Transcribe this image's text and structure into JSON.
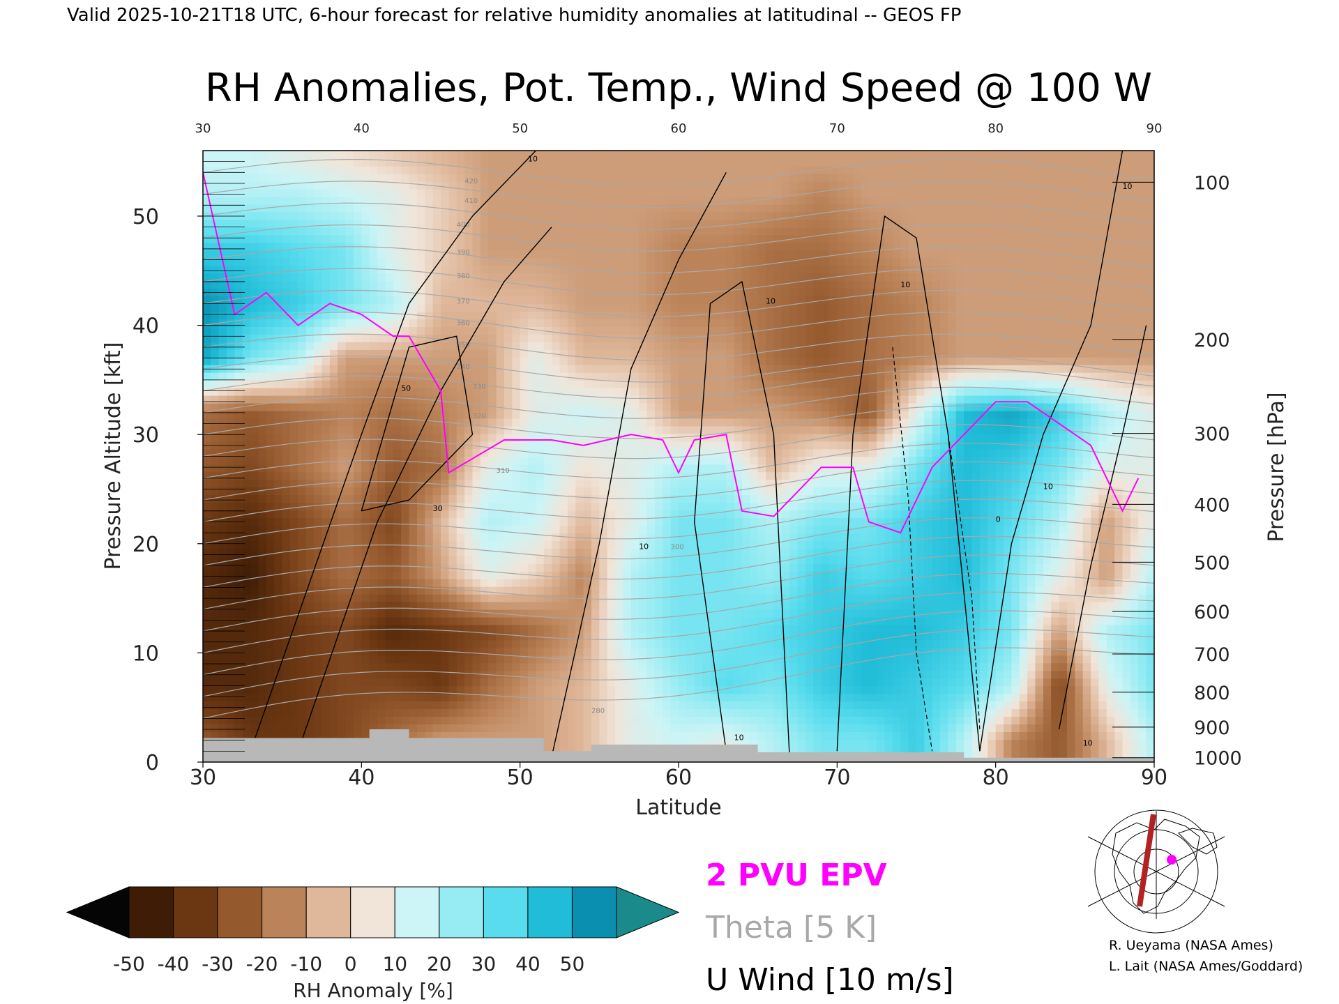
{
  "header": {
    "valid_line": "Valid 2025-10-21T18 UTC, 6-hour forecast for relative humidity anomalies at latitudinal -- GEOS FP"
  },
  "chart_data": {
    "type": "heatmap",
    "title": "RH Anomalies, Pot. Temp., Wind Speed @ 100 W",
    "xlabel": "Latitude",
    "ylabel_left": "Pressure Altitude [kft]",
    "ylabel_right": "Pressure [hPa]",
    "xlim": [
      30,
      90
    ],
    "ylim_kft": [
      0,
      56
    ],
    "x_ticks": [
      30,
      40,
      50,
      60,
      70,
      80,
      90
    ],
    "x_ticks_top": [
      30,
      40,
      50,
      60,
      70,
      80,
      90
    ],
    "y_ticks_kft": [
      0,
      10,
      20,
      30,
      40,
      50
    ],
    "pressure_ticks": [
      {
        "label": "100",
        "kft": 53.1
      },
      {
        "label": "200",
        "kft": 38.7
      },
      {
        "label": "300",
        "kft": 30.1
      },
      {
        "label": "400",
        "kft": 23.6
      },
      {
        "label": "500",
        "kft": 18.3
      },
      {
        "label": "600",
        "kft": 13.8
      },
      {
        "label": "700",
        "kft": 9.9
      },
      {
        "label": "800",
        "kft": 6.4
      },
      {
        "label": "900",
        "kft": 3.2
      },
      {
        "label": "1000",
        "kft": 0.4
      }
    ],
    "colorbar": {
      "label": "RH Anomaly [%]",
      "tick_labels": [
        "-50",
        "-40",
        "-30",
        "-20",
        "-10",
        "0",
        "10",
        "20",
        "30",
        "40",
        "50"
      ],
      "bins": [
        {
          "from": -50,
          "to": -40,
          "color": "#3e1c06"
        },
        {
          "from": -40,
          "to": -30,
          "color": "#6b3712"
        },
        {
          "from": -30,
          "to": -20,
          "color": "#95592e"
        },
        {
          "from": -20,
          "to": -10,
          "color": "#bb8359"
        },
        {
          "from": -10,
          "to": 0,
          "color": "#dfb79a"
        },
        {
          "from": 0,
          "to": 10,
          "color": "#f1e4d8"
        },
        {
          "from": 10,
          "to": 20,
          "color": "#cdf4f6"
        },
        {
          "from": 20,
          "to": 30,
          "color": "#97ecf3"
        },
        {
          "from": 30,
          "to": 40,
          "color": "#58dcee"
        },
        {
          "from": 40,
          "to": 50,
          "color": "#20bcd8"
        },
        {
          "from": 50,
          "to": 60,
          "color": "#0a8fb0"
        }
      ],
      "under_color": "#050505",
      "over_color": "#1a8a8a"
    },
    "rh_anomaly_grid": {
      "lat": [
        30,
        33,
        36,
        39,
        42,
        45,
        48,
        51,
        54,
        57,
        60,
        63,
        66,
        69,
        72,
        75,
        78,
        81,
        84,
        87,
        90
      ],
      "kft": [
        2,
        7,
        12,
        17,
        22,
        27,
        32,
        37,
        42,
        47,
        52,
        55
      ],
      "values": [
        [
          -25,
          -35,
          -35,
          -30,
          -20,
          -10,
          -10,
          -10,
          -5,
          10,
          15,
          10,
          20,
          30,
          30,
          40,
          20,
          -15,
          -25,
          -5,
          20
        ],
        [
          -40,
          -40,
          -35,
          -30,
          -30,
          -35,
          -20,
          -10,
          -5,
          10,
          25,
          35,
          30,
          40,
          45,
          40,
          35,
          20,
          -30,
          10,
          30
        ],
        [
          -40,
          -40,
          -35,
          -30,
          -40,
          -35,
          -30,
          -20,
          -10,
          20,
          30,
          30,
          35,
          40,
          45,
          45,
          40,
          30,
          -10,
          20,
          30
        ],
        [
          -40,
          -45,
          -30,
          -20,
          -25,
          -10,
          10,
          0,
          -15,
          20,
          30,
          30,
          25,
          40,
          35,
          40,
          45,
          30,
          10,
          -10,
          20
        ],
        [
          -35,
          -40,
          -30,
          -20,
          -30,
          -5,
          20,
          15,
          -5,
          10,
          30,
          30,
          20,
          30,
          30,
          40,
          45,
          35,
          20,
          -10,
          10
        ],
        [
          -25,
          -30,
          -20,
          -10,
          -25,
          -20,
          10,
          20,
          5,
          10,
          20,
          20,
          -5,
          10,
          10,
          30,
          45,
          40,
          30,
          10,
          10
        ],
        [
          -20,
          -25,
          -20,
          -15,
          -20,
          -15,
          -10,
          10,
          15,
          10,
          -10,
          -10,
          -10,
          -15,
          -25,
          10,
          45,
          50,
          40,
          20,
          10
        ],
        [
          50,
          30,
          20,
          -10,
          -10,
          -10,
          -10,
          10,
          -5,
          -5,
          -10,
          -10,
          -20,
          -25,
          -20,
          -15,
          -10,
          -10,
          -10,
          -10,
          -10
        ],
        [
          55,
          45,
          40,
          30,
          20,
          -5,
          -5,
          -5,
          -10,
          -10,
          -15,
          -15,
          -20,
          -25,
          -20,
          -15,
          -10,
          -10,
          -10,
          -10,
          -10
        ],
        [
          40,
          40,
          35,
          30,
          10,
          0,
          -10,
          -10,
          -10,
          -10,
          -15,
          -15,
          -20,
          -20,
          -15,
          -10,
          -10,
          -10,
          -10,
          -10,
          -10
        ],
        [
          20,
          20,
          20,
          15,
          10,
          0,
          -10,
          -10,
          -10,
          -10,
          -10,
          -10,
          -10,
          -15,
          -10,
          -10,
          -10,
          -10,
          -10,
          -10,
          -10
        ],
        [
          15,
          15,
          10,
          5,
          0,
          -5,
          -10,
          -10,
          -10,
          -10,
          -10,
          -10,
          -10,
          -10,
          -10,
          -10,
          -10,
          -10,
          -10,
          -10,
          -10
        ]
      ]
    },
    "theta_labels": [
      "420",
      "410",
      "400",
      "390",
      "380",
      "370",
      "360",
      "350",
      "340",
      "330",
      "320",
      "310",
      "300",
      "280"
    ],
    "u_wind_labels": [
      "10",
      "10",
      "10",
      "10",
      "10",
      "30",
      "50",
      "10",
      "0",
      "10",
      "10"
    ],
    "legend": {
      "epv": "2 PVU EPV",
      "theta": "Theta [5 K]",
      "uwind": "U Wind [10 m/s]"
    },
    "colors": {
      "epv": "#ff00ff",
      "theta": "#a8a8a8",
      "uwind": "#000000",
      "terrain": "#b8b8b8"
    }
  },
  "credits": {
    "line1": "R. Ueyama (NASA Ames)",
    "line2": "L. Lait (NASA Ames/Goddard)"
  }
}
